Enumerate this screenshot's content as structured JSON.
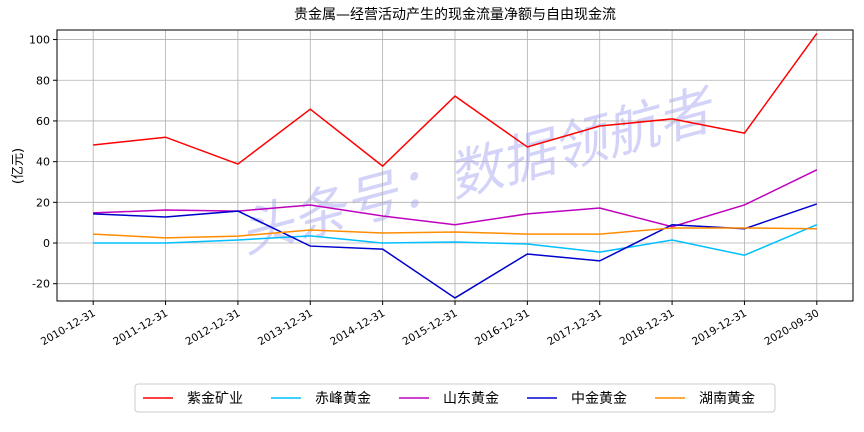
{
  "chart_data": {
    "type": "line",
    "title": "贵金属—经营活动产生的现金流量净额与自由现金流",
    "ylabel": "(亿元)",
    "watermark": "头条号：数据领航者",
    "categories": [
      "2010-12-31",
      "2011-12-31",
      "2012-12-31",
      "2013-12-31",
      "2014-12-31",
      "2015-12-31",
      "2016-12-31",
      "2017-12-31",
      "2018-12-31",
      "2019-12-31",
      "2020-09-30"
    ],
    "series": [
      {
        "name": "紫金矿业",
        "color": "#ff0000",
        "values": [
          48.2,
          52,
          38.8,
          65.8,
          37.8,
          72.2,
          47.2,
          57.5,
          61,
          54,
          103
        ]
      },
      {
        "name": "赤峰黄金",
        "color": "#00bfff",
        "values": [
          0,
          0,
          1.5,
          3.5,
          0,
          0.5,
          -0.5,
          -4.5,
          1.5,
          -6,
          9
        ]
      },
      {
        "name": "山东黄金",
        "color": "#bf00bf",
        "values": [
          14.8,
          16.2,
          15.7,
          18.7,
          13.3,
          9,
          14.3,
          17.2,
          8,
          18.7,
          36
        ]
      },
      {
        "name": "中金黄金",
        "color": "#0000cd",
        "values": [
          14.3,
          12.8,
          15.7,
          -1.5,
          -3,
          -27,
          -5.4,
          -8.8,
          9,
          7,
          19.2
        ]
      },
      {
        "name": "湖南黄金",
        "color": "#ff8c00",
        "values": [
          4.4,
          2.5,
          3.4,
          6.4,
          4.9,
          5.4,
          4.4,
          4.4,
          7.4,
          7.4,
          7
        ]
      }
    ],
    "ylim": [
      -28.5,
      104.7
    ],
    "yticks": [
      -20,
      0,
      20,
      40,
      60,
      80,
      100
    ],
    "grid": true,
    "legend": "bottom"
  }
}
